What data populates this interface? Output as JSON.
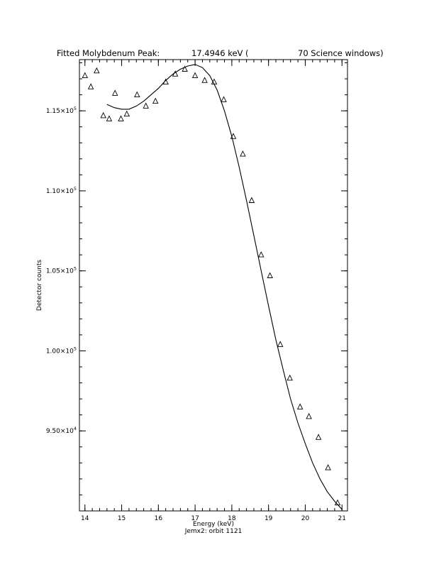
{
  "chart_data": {
    "type": "scatter",
    "title_parts": [
      "Fitted Molybdenum Peak:",
      "17.4946 keV (",
      "70 Science windows)"
    ],
    "xlabel": "Energy (keV)",
    "ylabel": "Detector counts",
    "footer": "Jemx2: orbit 1121",
    "xlim": [
      13.85,
      21.15
    ],
    "ylim": [
      90000,
      118200
    ],
    "x_ticks": [
      {
        "value": 14,
        "label": "14"
      },
      {
        "value": 15,
        "label": "15"
      },
      {
        "value": 16,
        "label": "16"
      },
      {
        "value": 17,
        "label": "17"
      },
      {
        "value": 18,
        "label": "18"
      },
      {
        "value": 19,
        "label": "19"
      },
      {
        "value": 20,
        "label": "20"
      },
      {
        "value": 21,
        "label": "21"
      }
    ],
    "y_ticks": [
      {
        "value": 95000,
        "mantissa": "9.50×10",
        "exp": "4"
      },
      {
        "value": 100000,
        "mantissa": "1.00×10",
        "exp": "5"
      },
      {
        "value": 105000,
        "mantissa": "1.05×10",
        "exp": "5"
      },
      {
        "value": 110000,
        "mantissa": "1.10×10",
        "exp": "5"
      },
      {
        "value": 115000,
        "mantissa": "1.15×10",
        "exp": "5"
      }
    ],
    "x_minor_step": 0.2,
    "y_minor_step": 1000,
    "grid": false,
    "series": [
      {
        "type": "scatter",
        "marker": "triangle",
        "points": [
          [
            14.0,
            117200
          ],
          [
            14.16,
            116500
          ],
          [
            14.32,
            117500
          ],
          [
            14.5,
            114700
          ],
          [
            14.66,
            114500
          ],
          [
            14.82,
            116100
          ],
          [
            14.98,
            114500
          ],
          [
            15.14,
            114800
          ],
          [
            15.42,
            116000
          ],
          [
            15.66,
            115300
          ],
          [
            15.92,
            115600
          ],
          [
            16.2,
            116800
          ],
          [
            16.46,
            117300
          ],
          [
            16.72,
            117600
          ],
          [
            17.0,
            117200
          ],
          [
            17.26,
            116900
          ],
          [
            17.52,
            116800
          ],
          [
            17.78,
            115700
          ],
          [
            18.04,
            113400
          ],
          [
            18.3,
            112300
          ],
          [
            18.54,
            109400
          ],
          [
            18.8,
            106000
          ],
          [
            19.04,
            104700
          ],
          [
            19.32,
            100400
          ],
          [
            19.58,
            98300
          ],
          [
            19.86,
            96500
          ],
          [
            20.1,
            95900
          ],
          [
            20.36,
            94600
          ],
          [
            20.62,
            92700
          ],
          [
            20.88,
            90500
          ]
        ]
      },
      {
        "type": "line",
        "points": [
          [
            14.6,
            115400
          ],
          [
            14.8,
            115200
          ],
          [
            15.0,
            115100
          ],
          [
            15.2,
            115100
          ],
          [
            15.4,
            115300
          ],
          [
            15.6,
            115600
          ],
          [
            15.8,
            116000
          ],
          [
            16.0,
            116400
          ],
          [
            16.2,
            116900
          ],
          [
            16.4,
            117300
          ],
          [
            16.6,
            117600
          ],
          [
            16.8,
            117800
          ],
          [
            17.0,
            117900
          ],
          [
            17.2,
            117700
          ],
          [
            17.4,
            117200
          ],
          [
            17.6,
            116300
          ],
          [
            17.8,
            115000
          ],
          [
            18.0,
            113400
          ],
          [
            18.2,
            111500
          ],
          [
            18.4,
            109400
          ],
          [
            18.6,
            107200
          ],
          [
            18.8,
            105000
          ],
          [
            19.0,
            102800
          ],
          [
            19.2,
            100700
          ],
          [
            19.4,
            98800
          ],
          [
            19.6,
            97000
          ],
          [
            19.8,
            95500
          ],
          [
            20.0,
            94200
          ],
          [
            20.2,
            93000
          ],
          [
            20.4,
            92000
          ],
          [
            20.6,
            91200
          ],
          [
            20.8,
            90600
          ],
          [
            21.0,
            90100
          ]
        ]
      }
    ]
  }
}
